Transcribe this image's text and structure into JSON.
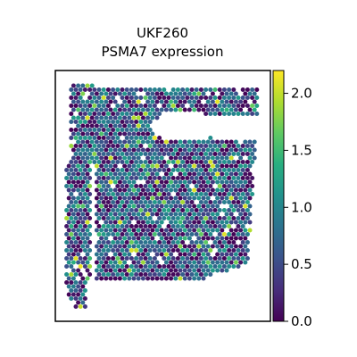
{
  "chart_data": {
    "type": "scatter",
    "title_line1": "UKF260",
    "title_line2": "PSMA7 expression",
    "colormap": "viridis",
    "colorbar": {
      "min": 0.0,
      "max": 2.2,
      "ticks": [
        0.0,
        0.5,
        1.0,
        1.5,
        2.0
      ],
      "tick_labels": [
        "0.0",
        "0.5",
        "1.0",
        "1.5",
        "2.0"
      ]
    },
    "axes_visible": false,
    "grid": false,
    "legend": "colorbar-right",
    "tissue_regions": [
      "left-strip",
      "main-body"
    ],
    "hole": "upper-center"
  }
}
